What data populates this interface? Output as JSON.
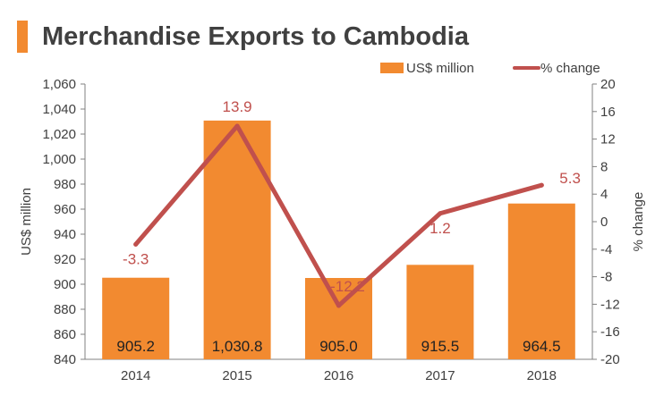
{
  "title": "Merchandise Exports to Cambodia",
  "colors": {
    "bar": "#f28a30",
    "line": "#c0504d",
    "title_bar": "#f28a30",
    "text": "#404040"
  },
  "chart_data": {
    "type": "bar+line",
    "title": "Merchandise Exports to Cambodia",
    "categories": [
      "2014",
      "2015",
      "2016",
      "2017",
      "2018"
    ],
    "series": [
      {
        "name": "US$ million",
        "type": "bar",
        "axis": "left",
        "values": [
          905.2,
          1030.8,
          905.0,
          915.5,
          964.5
        ],
        "labels": [
          "905.2",
          "1,030.8",
          "905.0",
          "915.5",
          "964.5"
        ]
      },
      {
        "name": "% change",
        "type": "line",
        "axis": "right",
        "values": [
          -3.3,
          13.9,
          -12.2,
          1.2,
          5.3
        ],
        "labels": [
          "-3.3",
          "13.9",
          "-12.2",
          "1.2",
          "5.3"
        ]
      }
    ],
    "ylabel": "US$ million",
    "ylabel_right": "% change",
    "ylim": [
      840,
      1060
    ],
    "ylim_right": [
      -20,
      20
    ],
    "yticks": [
      "840",
      "860",
      "880",
      "900",
      "920",
      "940",
      "960",
      "980",
      "1,000",
      "1,020",
      "1,040",
      "1,060"
    ],
    "yticks_right": [
      "-20",
      "-16",
      "-12",
      "-8",
      "-4",
      "0",
      "4",
      "8",
      "12",
      "16",
      "20"
    ],
    "grid": false,
    "legend_position": "top-right"
  }
}
